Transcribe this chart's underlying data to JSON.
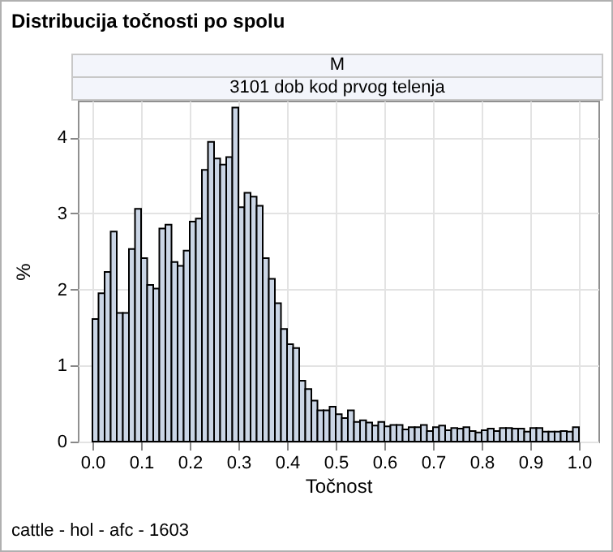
{
  "chart_data": {
    "type": "histogram",
    "title": "Distribucija točnosti po spolu",
    "subtitle": "M",
    "xlabel": "Točnost",
    "ylabel": "%",
    "annotations": [
      "3101 dob kod prvog telenja",
      "cattle - hol - afc - 1603"
    ],
    "bins": [
      0,
      0.0125,
      0.025,
      0.0375,
      0.05,
      0.0625,
      0.075,
      0.0875,
      0.1,
      0.1125,
      0.125,
      0.1375,
      0.15,
      0.1625,
      0.175,
      0.1875,
      0.2,
      0.2125,
      0.225,
      0.2375,
      0.25,
      0.2625,
      0.275,
      0.2875,
      0.3,
      0.3125,
      0.325,
      0.3375,
      0.35,
      0.3625,
      0.375,
      0.3875,
      0.4,
      0.4125,
      0.425,
      0.4375,
      0.45,
      0.4625,
      0.475,
      0.4875,
      0.5,
      0.5125,
      0.525,
      0.5375,
      0.55,
      0.5625,
      0.575,
      0.5875,
      0.6,
      0.6125,
      0.625,
      0.6375,
      0.65,
      0.6625,
      0.675,
      0.6875,
      0.7,
      0.7125,
      0.725,
      0.7375,
      0.75,
      0.7625,
      0.775,
      0.7875,
      0.8,
      0.8125,
      0.825,
      0.8375,
      0.85,
      0.8625,
      0.875,
      0.8875,
      0.9,
      0.9125,
      0.925,
      0.9375,
      0.95,
      0.9625,
      0.975,
      0.9875,
      1
    ],
    "values": [
      1.61,
      1.95,
      2.23,
      2.76,
      1.69,
      1.69,
      2.53,
      3.06,
      2.41,
      2.06,
      2.01,
      2.8,
      2.85,
      2.36,
      2.31,
      2.51,
      2.89,
      2.93,
      3.57,
      3.94,
      3.72,
      3.64,
      3.74,
      4.39,
      3.08,
      3.27,
      3.22,
      3.1,
      2.41,
      2.14,
      1.82,
      1.48,
      1.28,
      1.23,
      0.8,
      0.69,
      0.54,
      0.41,
      0.41,
      0.46,
      0.36,
      0.31,
      0.41,
      0.26,
      0.28,
      0.25,
      0.21,
      0.26,
      0.2,
      0.22,
      0.22,
      0.16,
      0.19,
      0.19,
      0.22,
      0.14,
      0.19,
      0.21,
      0.15,
      0.18,
      0.17,
      0.19,
      0.14,
      0.12,
      0.15,
      0.17,
      0.14,
      0.18,
      0.18,
      0.17,
      0.17,
      0.13,
      0.18,
      0.18,
      0.13,
      0.13,
      0.13,
      0.14,
      0.13,
      0.19
    ],
    "color": "#cad5e5",
    "xlim": [
      -0.03,
      1.04
    ],
    "ylim": [
      0,
      4.48
    ],
    "xticks": [
      {
        "value": 0,
        "label": "0.0"
      },
      0.1,
      0.2,
      0.3,
      0.4,
      0.5,
      0.6,
      0.7,
      0.8,
      0.9,
      {
        "value": 1,
        "label": "1.0"
      }
    ],
    "yticks": [
      0,
      1,
      2,
      3,
      4
    ],
    "grid": true
  }
}
